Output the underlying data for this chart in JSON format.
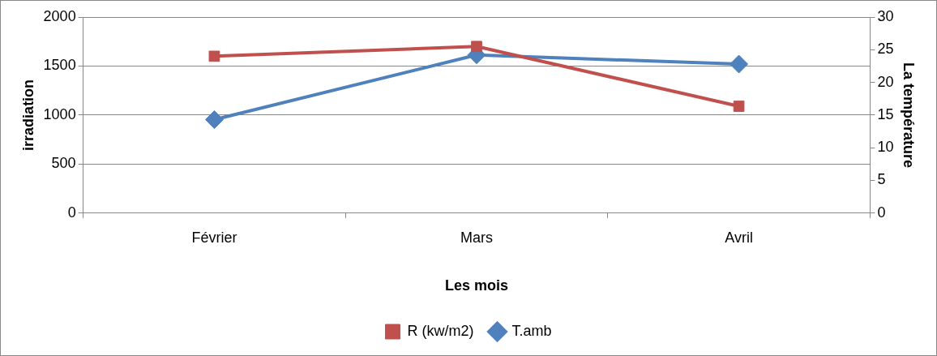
{
  "chart_data": {
    "type": "line",
    "xlabel": "Les mois",
    "ylabel": "irradiation",
    "y2label": "La température",
    "categories": [
      "Février",
      "Mars",
      "Avril"
    ],
    "series": [
      {
        "name": "R (kw/m2)",
        "color": "#c0504d",
        "values": [
          1600,
          1700,
          1090
        ],
        "marker": "square"
      },
      {
        "name": "T.amb",
        "color": "#4f81bd",
        "values": [
          14.3,
          24.2,
          22.8
        ],
        "axis": "y2",
        "marker": "diamond"
      }
    ],
    "ylim": [
      0,
      2000
    ],
    "yticks": [
      0,
      500,
      1000,
      1500,
      2000
    ],
    "y2lim": [
      0,
      30
    ],
    "y2ticks": [
      0,
      5,
      10,
      15,
      20,
      25,
      30
    ],
    "grid": "y",
    "legend": "bottom",
    "line_style": "solid"
  }
}
